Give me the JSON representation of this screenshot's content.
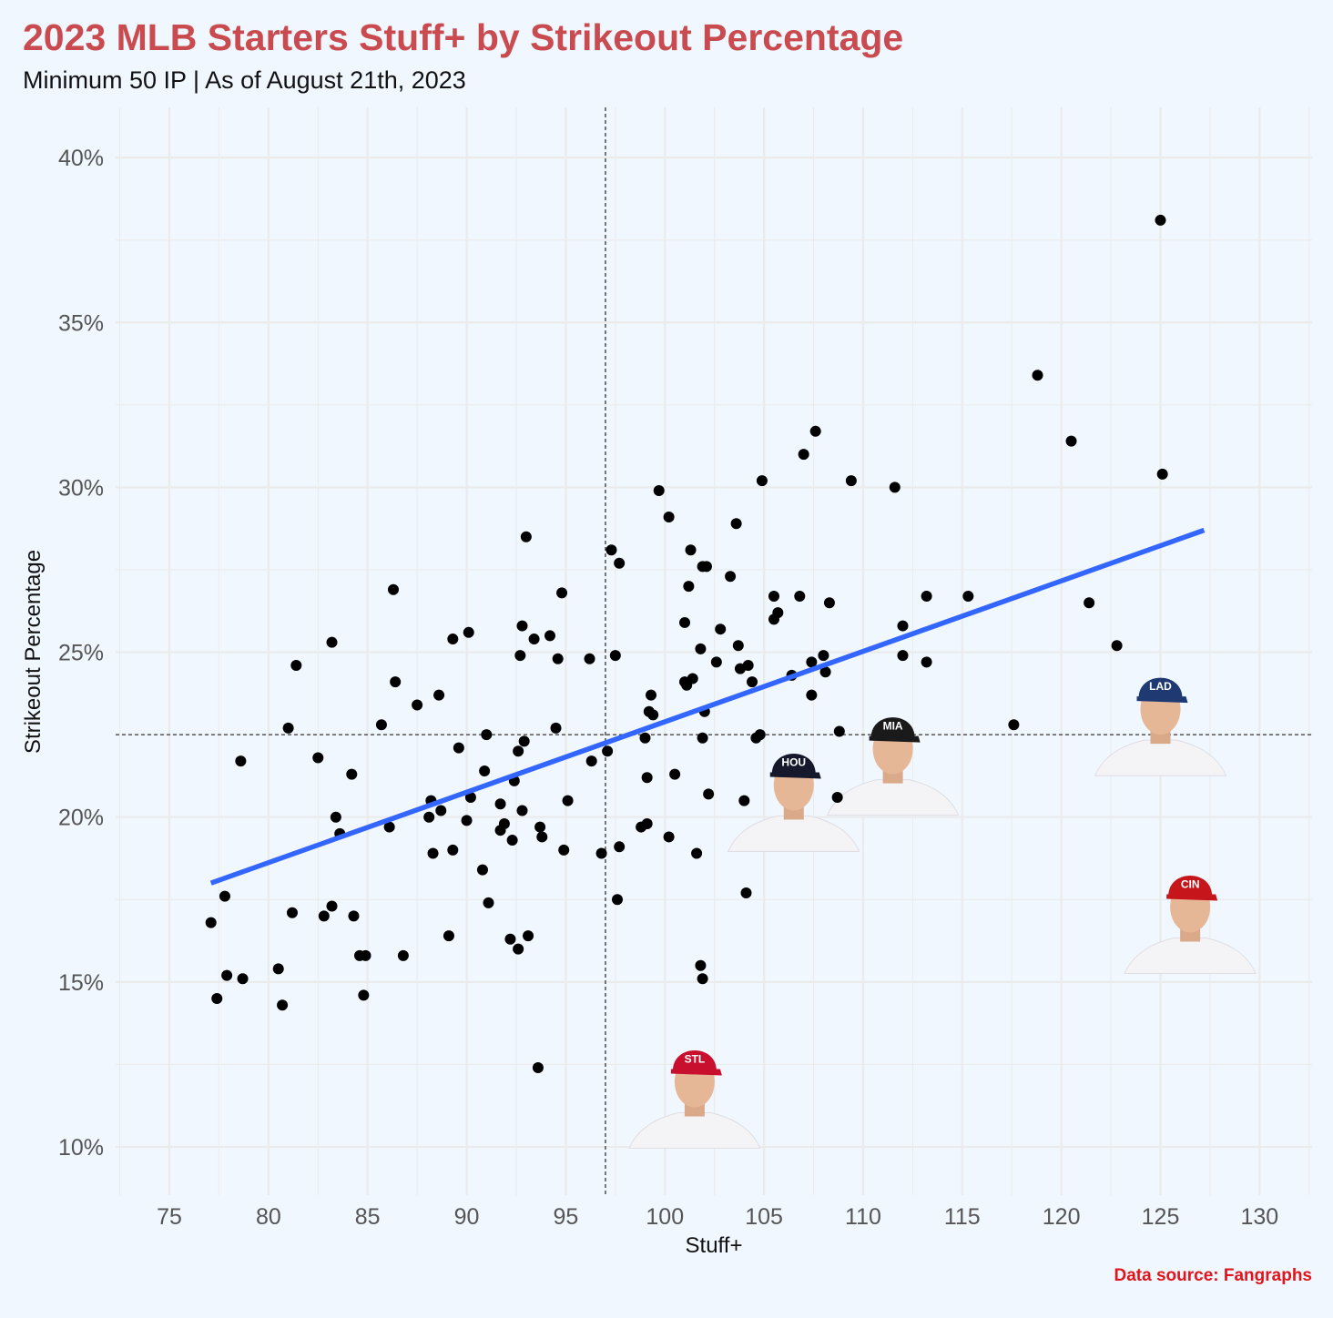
{
  "title": "2023 MLB Starters Stuff+ by Strikeout Percentage",
  "subtitle": "Minimum 50 IP | As of August 21th, 2023",
  "caption": "Data source: Fangraphs",
  "colors": {
    "background": "#f0f7fe",
    "title": "#c94b4f",
    "caption": "#e0141a",
    "trend_line": "#3366ff",
    "points": "#000000",
    "grid": "#ebebeb"
  },
  "player_icons": [
    {
      "name": "dodgers-player-icon",
      "team": "LAD",
      "cap_color": "#1f3a73",
      "x": 125,
      "y": 22.5
    },
    {
      "name": "reds-player-icon",
      "team": "CIN",
      "cap_color": "#c6151b",
      "x": 126.5,
      "y": 16.5
    },
    {
      "name": "astros-player-icon",
      "team": "HOU",
      "cap_color": "#15192b",
      "x": 106.5,
      "y": 20.2
    },
    {
      "name": "marlins-player-icon",
      "team": "MIA",
      "cap_color": "#1a1a1a",
      "x": 111.5,
      "y": 21.3
    },
    {
      "name": "cardinals-player-icon",
      "team": "STL",
      "cap_color": "#c8102e",
      "x": 101.5,
      "y": 11.2
    }
  ],
  "chart_data": {
    "type": "scatter",
    "xlabel": "Stuff+",
    "ylabel": "Strikeout Percentage",
    "xlim": [
      72.5,
      133
    ],
    "ylim": [
      8.5,
      41.5
    ],
    "x_ticks": [
      75,
      80,
      85,
      90,
      95,
      100,
      105,
      110,
      115,
      120,
      125,
      130
    ],
    "y_ticks": [
      10,
      15,
      20,
      25,
      30,
      35,
      40
    ],
    "y_tick_labels": [
      "10%",
      "15%",
      "20%",
      "25%",
      "30%",
      "35%",
      "40%"
    ],
    "grid": true,
    "reference_lines": {
      "x": 97,
      "y": 22.5
    },
    "trend_line": {
      "x": [
        77.1,
        127.2
      ],
      "y": [
        18.0,
        28.7
      ]
    },
    "points": [
      [
        77.1,
        16.8
      ],
      [
        77.4,
        14.5
      ],
      [
        77.8,
        17.6
      ],
      [
        77.9,
        15.2
      ],
      [
        78.6,
        21.7
      ],
      [
        78.7,
        15.1
      ],
      [
        80.5,
        15.4
      ],
      [
        80.7,
        14.3
      ],
      [
        81.0,
        22.7
      ],
      [
        81.2,
        17.1
      ],
      [
        81.4,
        24.6
      ],
      [
        82.5,
        21.8
      ],
      [
        82.8,
        17.0
      ],
      [
        83.2,
        25.3
      ],
      [
        83.2,
        17.3
      ],
      [
        83.4,
        20.0
      ],
      [
        83.6,
        19.5
      ],
      [
        84.2,
        21.3
      ],
      [
        84.3,
        17.0
      ],
      [
        84.6,
        15.8
      ],
      [
        84.8,
        14.6
      ],
      [
        84.9,
        15.8
      ],
      [
        85.7,
        22.8
      ],
      [
        86.1,
        19.7
      ],
      [
        86.3,
        26.9
      ],
      [
        86.4,
        24.1
      ],
      [
        86.8,
        15.8
      ],
      [
        87.5,
        23.4
      ],
      [
        88.1,
        20.0
      ],
      [
        88.2,
        20.5
      ],
      [
        88.3,
        18.9
      ],
      [
        88.6,
        23.7
      ],
      [
        88.7,
        20.2
      ],
      [
        89.1,
        16.4
      ],
      [
        89.3,
        25.4
      ],
      [
        89.3,
        19.0
      ],
      [
        89.6,
        22.1
      ],
      [
        90.0,
        19.9
      ],
      [
        90.1,
        25.6
      ],
      [
        90.2,
        20.6
      ],
      [
        90.8,
        18.4
      ],
      [
        90.9,
        21.4
      ],
      [
        91.0,
        22.5
      ],
      [
        91.1,
        17.4
      ],
      [
        91.7,
        20.4
      ],
      [
        91.7,
        19.6
      ],
      [
        91.9,
        19.8
      ],
      [
        92.2,
        16.3
      ],
      [
        92.3,
        19.3
      ],
      [
        92.4,
        21.1
      ],
      [
        92.6,
        22.0
      ],
      [
        92.6,
        16.0
      ],
      [
        92.7,
        24.9
      ],
      [
        92.8,
        25.8
      ],
      [
        92.8,
        20.2
      ],
      [
        92.9,
        22.3
      ],
      [
        93.0,
        28.5
      ],
      [
        93.1,
        16.4
      ],
      [
        93.4,
        25.4
      ],
      [
        93.6,
        12.4
      ],
      [
        93.7,
        19.7
      ],
      [
        93.8,
        19.4
      ],
      [
        94.2,
        25.5
      ],
      [
        94.5,
        22.7
      ],
      [
        94.6,
        24.8
      ],
      [
        94.8,
        26.8
      ],
      [
        94.9,
        19.0
      ],
      [
        95.1,
        20.5
      ],
      [
        96.2,
        24.8
      ],
      [
        96.3,
        21.7
      ],
      [
        96.8,
        18.9
      ],
      [
        97.1,
        22.0
      ],
      [
        97.3,
        28.1
      ],
      [
        97.5,
        24.9
      ],
      [
        97.6,
        17.5
      ],
      [
        97.7,
        19.1
      ],
      [
        97.7,
        27.7
      ],
      [
        98.8,
        19.7
      ],
      [
        99.0,
        22.4
      ],
      [
        99.1,
        21.2
      ],
      [
        99.1,
        19.8
      ],
      [
        99.2,
        23.2
      ],
      [
        99.3,
        23.7
      ],
      [
        99.4,
        23.1
      ],
      [
        99.7,
        29.9
      ],
      [
        100.2,
        19.4
      ],
      [
        100.2,
        29.1
      ],
      [
        100.5,
        21.3
      ],
      [
        101.0,
        25.9
      ],
      [
        101.0,
        24.1
      ],
      [
        101.1,
        24.0
      ],
      [
        101.2,
        27.0
      ],
      [
        101.3,
        28.1
      ],
      [
        101.4,
        24.2
      ],
      [
        101.6,
        18.9
      ],
      [
        101.8,
        15.5
      ],
      [
        101.8,
        25.1
      ],
      [
        101.9,
        15.1
      ],
      [
        101.9,
        27.6
      ],
      [
        101.9,
        22.4
      ],
      [
        102.0,
        23.2
      ],
      [
        102.1,
        27.6
      ],
      [
        102.2,
        20.7
      ],
      [
        102.6,
        24.7
      ],
      [
        102.8,
        25.7
      ],
      [
        103.3,
        27.3
      ],
      [
        103.6,
        28.9
      ],
      [
        103.7,
        25.2
      ],
      [
        103.8,
        24.5
      ],
      [
        104.0,
        20.5
      ],
      [
        104.1,
        17.7
      ],
      [
        104.2,
        24.6
      ],
      [
        104.4,
        24.1
      ],
      [
        104.6,
        22.4
      ],
      [
        104.8,
        22.5
      ],
      [
        104.9,
        30.2
      ],
      [
        105.5,
        26.7
      ],
      [
        105.5,
        26.0
      ],
      [
        105.7,
        26.2
      ],
      [
        106.4,
        24.3
      ],
      [
        106.8,
        26.7
      ],
      [
        107.0,
        31.0
      ],
      [
        107.4,
        24.7
      ],
      [
        107.4,
        23.7
      ],
      [
        107.6,
        31.7
      ],
      [
        108.0,
        24.9
      ],
      [
        108.1,
        24.4
      ],
      [
        108.3,
        26.5
      ],
      [
        108.7,
        20.6
      ],
      [
        108.8,
        22.6
      ],
      [
        109.4,
        30.2
      ],
      [
        111.6,
        30.0
      ],
      [
        112.0,
        25.8
      ],
      [
        112.0,
        24.9
      ],
      [
        113.2,
        26.7
      ],
      [
        113.2,
        24.7
      ],
      [
        115.3,
        26.7
      ],
      [
        117.6,
        22.8
      ],
      [
        118.8,
        33.4
      ],
      [
        120.5,
        31.4
      ],
      [
        121.4,
        26.5
      ],
      [
        122.8,
        25.2
      ],
      [
        125.0,
        38.1
      ],
      [
        125.1,
        30.4
      ]
    ]
  }
}
